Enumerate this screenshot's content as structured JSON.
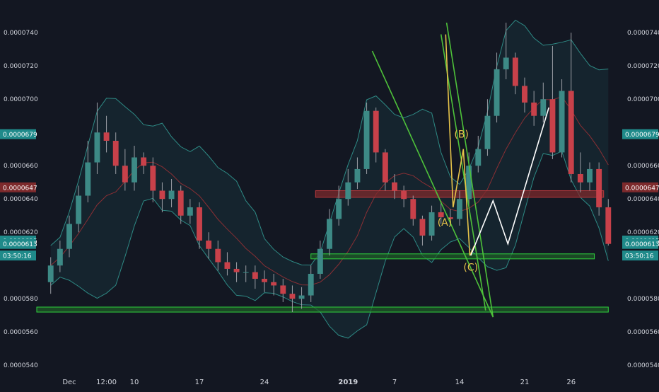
{
  "chart_data": {
    "type": "candlestick",
    "y_axis": {
      "ticks": [
        "0.0000740",
        "0.0000720",
        "0.0000700",
        "0.0000660",
        "0.0000640",
        "0.0000620",
        "0.0000580",
        "0.0000560",
        "0.0000540"
      ],
      "ylim": [
        5.35e-05,
        7.52e-05
      ],
      "side": "both"
    },
    "x_axis": {
      "ticks": [
        "Dec",
        "12:00",
        "10",
        "17",
        "24",
        "2019",
        "7",
        "14",
        "21",
        "26"
      ],
      "tick_values": [
        2,
        6,
        9,
        16,
        23,
        32,
        37,
        44,
        51,
        56
      ],
      "xlim": [
        -1.5,
        61.5
      ]
    },
    "price_labels": [
      {
        "text": "0.0000679",
        "value": 6.79e-05,
        "color": "#1f8a8a"
      },
      {
        "text": "0.0000647",
        "value": 6.47e-05,
        "color": "#7d2a2c"
      },
      {
        "text": "0.0000615",
        "value": 6.15e-05,
        "color": "#1f8a8a"
      },
      {
        "text": "0.0000613",
        "value": 6.13e-05,
        "color": "#1f8a8a"
      },
      {
        "text": "03:50:16",
        "value": 6.06e-05,
        "color": "#1f8a8a"
      }
    ],
    "candles_open": [
      5.9e-05,
      6e-05,
      6.1e-05,
      6.25e-05,
      6.42e-05,
      6.62e-05,
      6.8e-05,
      6.75e-05,
      6.6e-05,
      6.5e-05,
      6.65e-05,
      6.6e-05,
      6.45e-05,
      6.4e-05,
      6.45e-05,
      6.3e-05,
      6.35e-05,
      6.15e-05,
      6.1e-05,
      6.02e-05,
      5.98e-05,
      5.96e-05,
      5.96e-05,
      5.92e-05,
      5.9e-05,
      5.88e-05,
      5.83e-05,
      5.8e-05,
      5.82e-05,
      5.95e-05,
      6.1e-05,
      6.28e-05,
      6.4e-05,
      6.5e-05,
      6.58e-05,
      6.93e-05,
      6.68e-05,
      6.5e-05,
      6.45e-05,
      6.4e-05,
      6.28e-05,
      6.18e-05,
      6.32e-05,
      6.29e-05,
      6.28e-05,
      6.4e-05,
      6.6e-05,
      6.7e-05,
      6.9e-05,
      7.18e-05,
      7.25e-05,
      7.08e-05,
      6.98e-05,
      6.9e-05,
      7e-05,
      6.68e-05,
      7.05e-05,
      6.55e-05,
      6.5e-05,
      6.58e-05,
      6.35e-05
    ],
    "candles_close": [
      6e-05,
      6.1e-05,
      6.25e-05,
      6.42e-05,
      6.62e-05,
      6.8e-05,
      6.75e-05,
      6.6e-05,
      6.5e-05,
      6.65e-05,
      6.6e-05,
      6.45e-05,
      6.4e-05,
      6.45e-05,
      6.3e-05,
      6.35e-05,
      6.15e-05,
      6.1e-05,
      6.02e-05,
      5.98e-05,
      5.96e-05,
      5.96e-05,
      5.92e-05,
      5.9e-05,
      5.88e-05,
      5.83e-05,
      5.8e-05,
      5.82e-05,
      5.95e-05,
      6.1e-05,
      6.28e-05,
      6.4e-05,
      6.5e-05,
      6.58e-05,
      6.93e-05,
      6.68e-05,
      6.5e-05,
      6.45e-05,
      6.4e-05,
      6.28e-05,
      6.18e-05,
      6.32e-05,
      6.29e-05,
      6.28e-05,
      6.4e-05,
      6.6e-05,
      6.7e-05,
      6.9e-05,
      7.18e-05,
      7.25e-05,
      7.08e-05,
      6.98e-05,
      6.9e-05,
      7e-05,
      6.68e-05,
      7.05e-05,
      6.55e-05,
      6.5e-05,
      6.58e-05,
      6.35e-05,
      6.13e-05
    ],
    "candles_high": [
      6.05e-05,
      6.15e-05,
      6.3e-05,
      6.48e-05,
      6.75e-05,
      6.98e-05,
      6.9e-05,
      6.8e-05,
      6.7e-05,
      6.72e-05,
      6.68e-05,
      6.65e-05,
      6.5e-05,
      6.52e-05,
      6.48e-05,
      6.4e-05,
      6.38e-05,
      6.2e-05,
      6.15e-05,
      6.08e-05,
      6.02e-05,
      6e-05,
      6e-05,
      5.97e-05,
      5.95e-05,
      5.92e-05,
      5.88e-05,
      5.87e-05,
      6e-05,
      6.15e-05,
      6.34e-05,
      6.48e-05,
      6.58e-05,
      6.65e-05,
      6.98e-05,
      6.95e-05,
      6.7e-05,
      6.55e-05,
      6.48e-05,
      6.42e-05,
      6.3e-05,
      6.36e-05,
      6.38e-05,
      6.34e-05,
      6.45e-05,
      6.68e-05,
      6.78e-05,
      7e-05,
      7.28e-05,
      7.46e-05,
      7.28e-05,
      7.13e-05,
      7.05e-05,
      7.1e-05,
      7.32e-05,
      7.12e-05,
      7.4e-05,
      6.68e-05,
      6.62e-05,
      6.62e-05,
      6.4e-05
    ],
    "candles_low": [
      5.83e-05,
      5.96e-05,
      6.05e-05,
      6.2e-05,
      6.38e-05,
      6.55e-05,
      6.68e-05,
      6.55e-05,
      6.45e-05,
      6.45e-05,
      6.55e-05,
      6.38e-05,
      6.32e-05,
      6.35e-05,
      6.25e-05,
      6.25e-05,
      6.1e-05,
      6.04e-05,
      5.97e-05,
      5.94e-05,
      5.9e-05,
      5.9e-05,
      5.86e-05,
      5.84e-05,
      5.82e-05,
      5.78e-05,
      5.72e-05,
      5.74e-05,
      5.78e-05,
      5.92e-05,
      6.06e-05,
      6.24e-05,
      6.36e-05,
      6.46e-05,
      6.55e-05,
      6.62e-05,
      6.45e-05,
      6.4e-05,
      6.35e-05,
      6.24e-05,
      6.12e-05,
      6.15e-05,
      6.25e-05,
      6.24e-05,
      6.24e-05,
      6.36e-05,
      6.56e-05,
      6.66e-05,
      6.86e-05,
      7.12e-05,
      7.03e-05,
      6.92e-05,
      6.84e-05,
      6.86e-05,
      6.64e-05,
      6.65e-05,
      6.5e-05,
      6.44e-05,
      6.45e-05,
      6.3e-05,
      6.12e-05
    ],
    "zones": [
      {
        "name": "resistance-zone",
        "x": [
          28.5,
          59.5
        ],
        "y": [
          6.41e-05,
          6.45e-05
        ],
        "color": "#7d2a2c"
      },
      {
        "name": "support-zone-near",
        "x": [
          28,
          58.5
        ],
        "y": [
          6.04e-05,
          6.07e-05
        ],
        "color": "#1f5a27"
      },
      {
        "name": "support-zone-low",
        "x": [
          -1.5,
          60
        ],
        "y": [
          5.72e-05,
          5.75e-05
        ],
        "color": "#1f5a27"
      }
    ],
    "trendlines": [
      {
        "name": "green-trendline-upper",
        "color": "#4ec23a",
        "points": [
          [
            42.6,
            7.46e-05
          ],
          [
            47.6,
            5.69e-05
          ]
        ]
      },
      {
        "name": "green-trendline-lower",
        "color": "#4ec23a",
        "points": [
          [
            34.6,
            7.29e-05
          ],
          [
            47.6,
            5.69e-05
          ]
        ]
      },
      {
        "name": "green-trendline-mid",
        "color": "#4ec23a",
        "points": [
          [
            42.0,
            7.39e-05
          ],
          [
            46.8,
            5.73e-05
          ]
        ]
      }
    ],
    "wave_path": {
      "color": "#e6c34a",
      "points": [
        [
          42.5,
          7.39e-05
        ],
        [
          43.3,
          6.35e-05
        ],
        [
          44.4,
          6.7e-05
        ],
        [
          45.1,
          6.06e-05
        ],
        [
          45.6,
          6.12e-05
        ]
      ]
    },
    "projection_path": {
      "color": "#ffffff",
      "points": [
        [
          45.2,
          6.06e-05
        ],
        [
          47.6,
          6.39e-05
        ],
        [
          49.2,
          6.13e-05
        ],
        [
          53.6,
          6.95e-05
        ]
      ]
    },
    "wave_labels": [
      {
        "text": "(A)",
        "x": 42.4,
        "y": 6.24e-05,
        "color": "#e6c34a"
      },
      {
        "text": "(B)",
        "x": 44.2,
        "y": 6.77e-05,
        "color": "#e6c34a"
      },
      {
        "text": "(C)",
        "x": 45.2,
        "y": 5.97e-05,
        "color": "#e6c34a"
      }
    ],
    "grid": false
  }
}
